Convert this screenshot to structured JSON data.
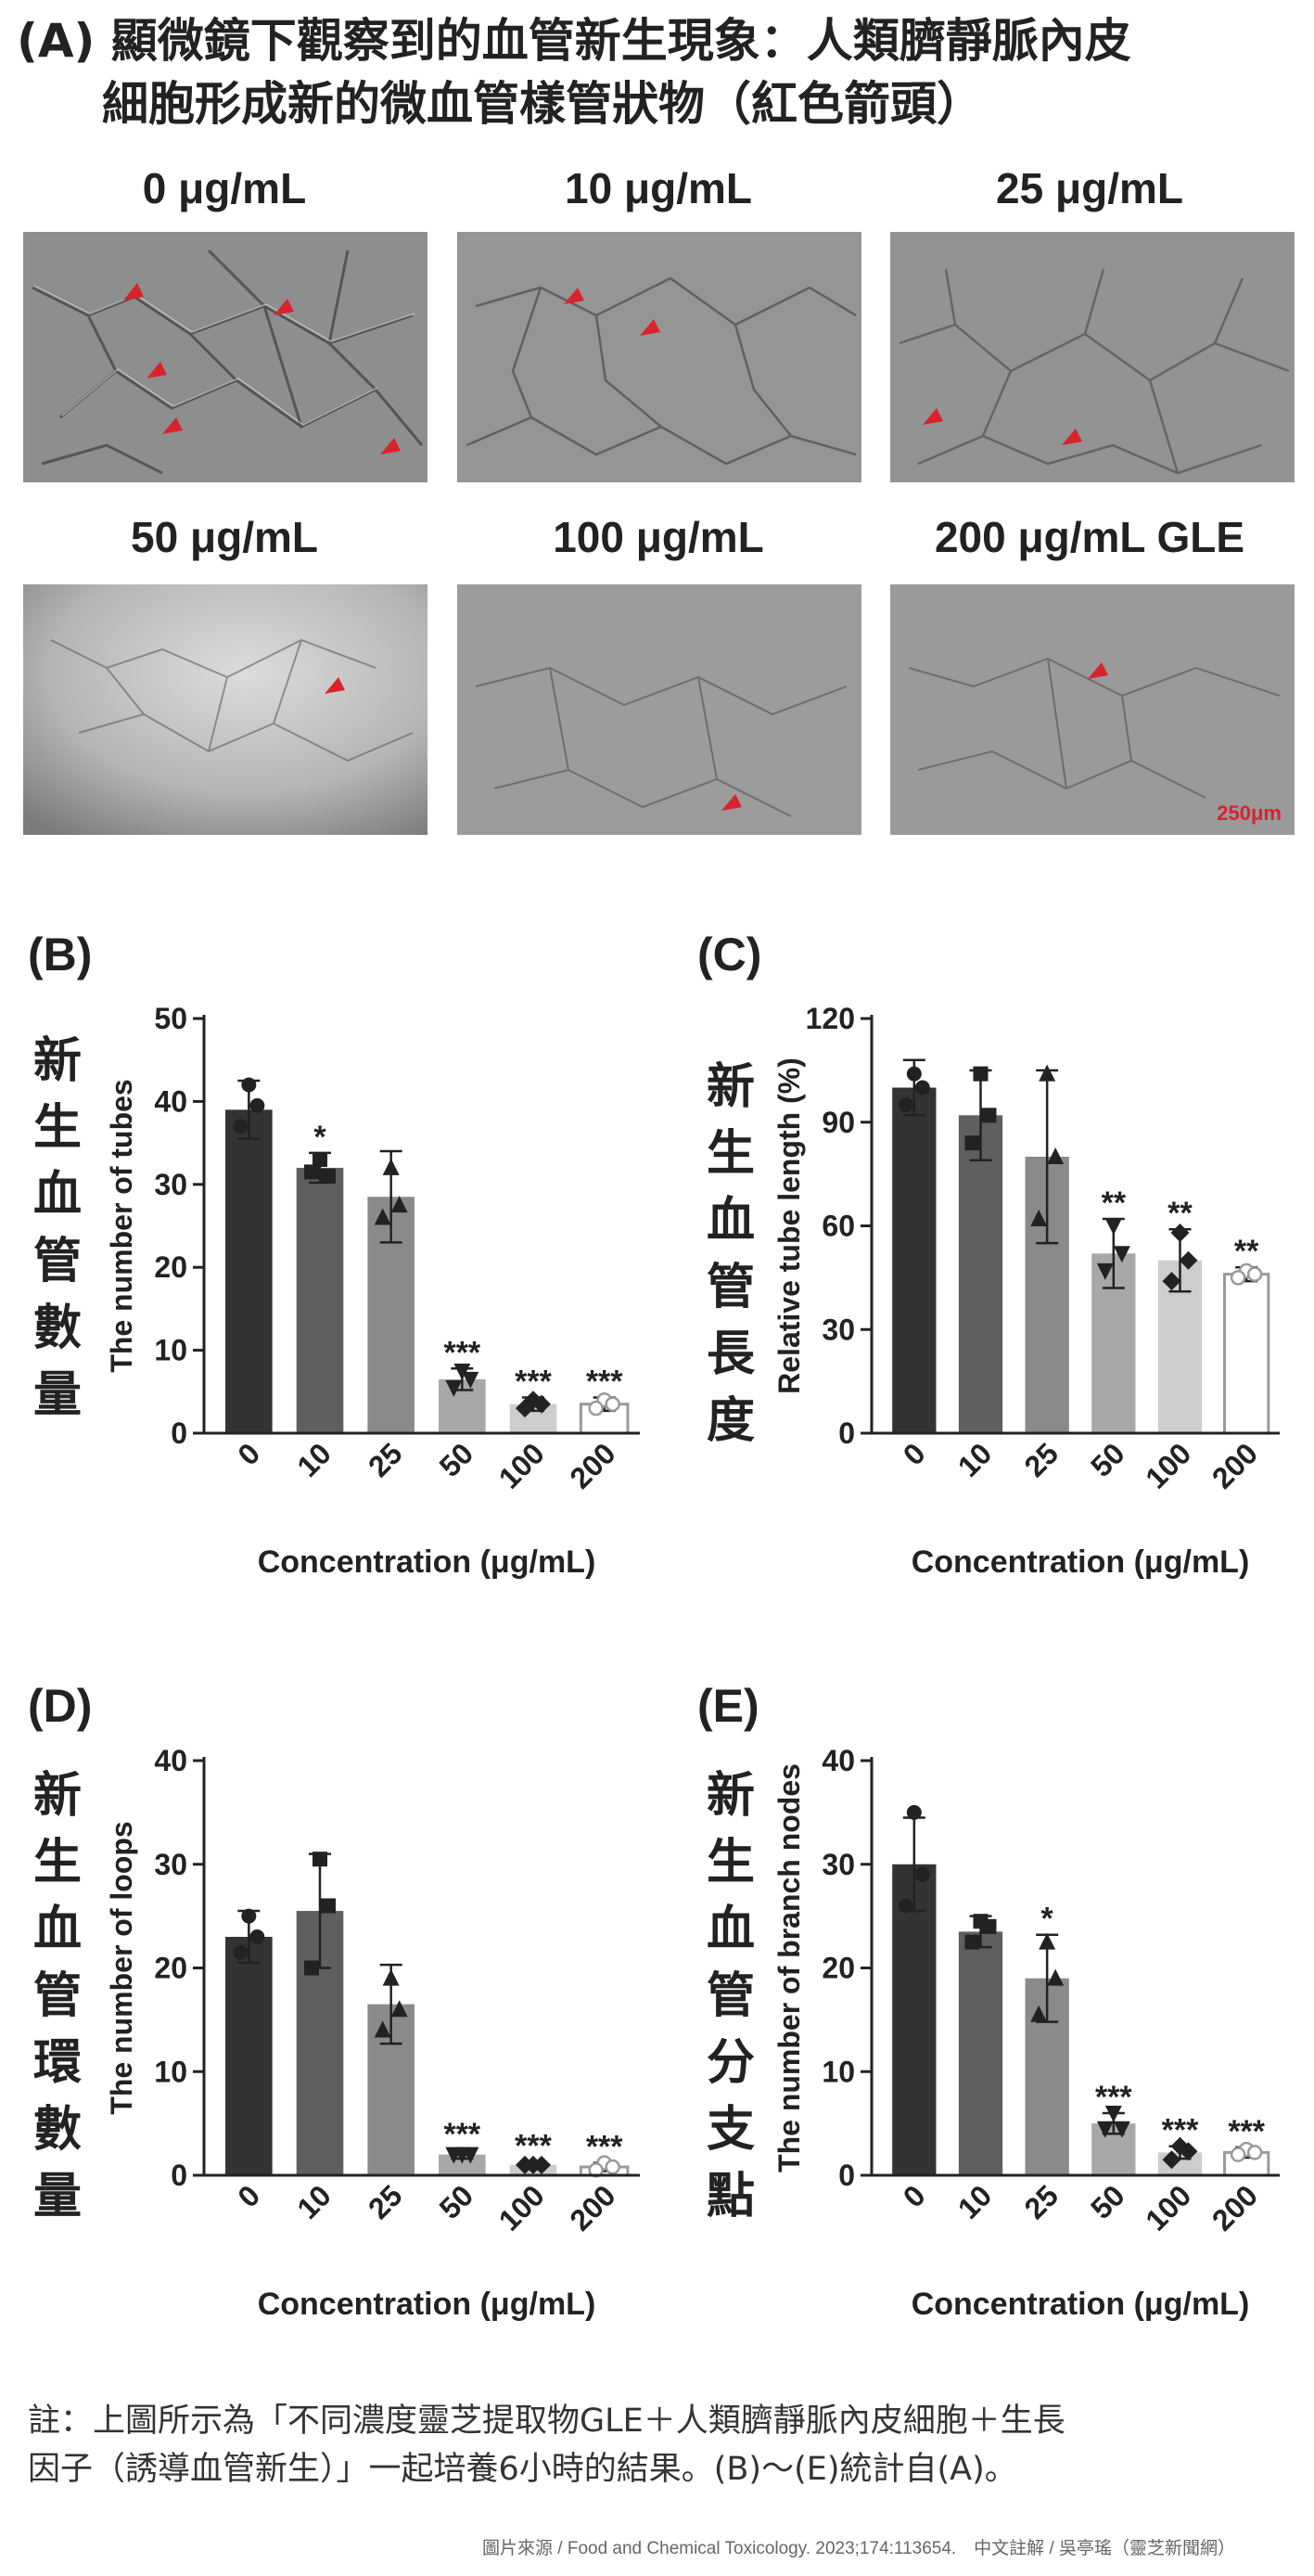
{
  "panel_a": {
    "title_line1": "(A) 顯微鏡下觀察到的血管新生現象：人類臍靜脈內皮",
    "title_line2": "細胞形成新的微血管樣管狀物（紅色箭頭）",
    "labels": [
      "0 μg/mL",
      "10 μg/mL",
      "25 μg/mL",
      "50 μg/mL",
      "100 μg/mL",
      "200 μg/mL GLE"
    ],
    "scale_bar_text": "250μm",
    "arrow_color": "#d9232a"
  },
  "zh_labels": {
    "b": "新生血管數量",
    "c": "新生血管長度",
    "d": "新生血管環數量",
    "e": "新生血管分支點"
  },
  "chart_data": [
    {
      "panel": "(B)",
      "type": "bar",
      "categories": [
        "0",
        "10",
        "25",
        "50",
        "100",
        "200"
      ],
      "values": [
        39,
        32,
        28.5,
        6.5,
        3.5,
        3.5
      ],
      "errors": [
        3.5,
        1.8,
        5.5,
        1.3,
        0.8,
        0.8
      ],
      "points": [
        [
          42,
          37,
          39.5
        ],
        [
          33,
          31.5,
          31
        ],
        [
          32,
          26,
          27.5
        ],
        [
          7.5,
          5.5,
          6.5
        ],
        [
          4,
          3,
          3.5
        ],
        [
          4,
          3,
          3.5
        ]
      ],
      "significance": [
        "",
        "*",
        "",
        "***",
        "***",
        "***"
      ],
      "ylabel": "The number of tubes",
      "xlabel": "Concentration (μg/mL)",
      "ylim": [
        0,
        50
      ],
      "yticks": [
        "0",
        "10",
        "20",
        "30",
        "40",
        "50"
      ]
    },
    {
      "panel": "(C)",
      "type": "bar",
      "categories": [
        "0",
        "10",
        "25",
        "50",
        "100",
        "200"
      ],
      "values": [
        100,
        92,
        80,
        52,
        50,
        46
      ],
      "errors": [
        8,
        13,
        25,
        10,
        9,
        2
      ],
      "points": [
        [
          104,
          95,
          100
        ],
        [
          104,
          84,
          92
        ],
        [
          104,
          62,
          80
        ],
        [
          60,
          47,
          52
        ],
        [
          58,
          44,
          50
        ],
        [
          47,
          45,
          46
        ]
      ],
      "significance": [
        "",
        "",
        "",
        "**",
        "**",
        "**"
      ],
      "ylabel": "Relative tube length (%)",
      "xlabel": "Concentration (μg/mL)",
      "ylim": [
        0,
        120
      ],
      "yticks": [
        "0",
        "30",
        "60",
        "90",
        "120"
      ]
    },
    {
      "panel": "(D)",
      "type": "bar",
      "categories": [
        "0",
        "10",
        "25",
        "50",
        "100",
        "200"
      ],
      "values": [
        23,
        25.5,
        16.5,
        2,
        1,
        0.8
      ],
      "errors": [
        2.5,
        5.5,
        3.8,
        0.4,
        0.3,
        0.4
      ],
      "points": [
        [
          25,
          21.5,
          23
        ],
        [
          30.5,
          20,
          26
        ],
        [
          19,
          14,
          16
        ],
        [
          2,
          2,
          2
        ],
        [
          1,
          1,
          1
        ],
        [
          1.2,
          0.5,
          0.8
        ]
      ],
      "significance": [
        "",
        "",
        "",
        "***",
        "***",
        "***"
      ],
      "ylabel": "The number of loops",
      "xlabel": "Concentration (μg/mL)",
      "ylim": [
        0,
        40
      ],
      "yticks": [
        "0",
        "10",
        "20",
        "30",
        "40"
      ]
    },
    {
      "panel": "(E)",
      "type": "bar",
      "categories": [
        "0",
        "10",
        "25",
        "50",
        "100",
        "200"
      ],
      "values": [
        30,
        23.5,
        19,
        5,
        2.2,
        2.2
      ],
      "errors": [
        4.5,
        1.5,
        4.2,
        1,
        0.6,
        0.5
      ],
      "points": [
        [
          35,
          26,
          29
        ],
        [
          24.5,
          22.5,
          24
        ],
        [
          22.5,
          15.5,
          19
        ],
        [
          6,
          4.5,
          4.5
        ],
        [
          2.8,
          1.5,
          2.3
        ],
        [
          2.5,
          2,
          2.2
        ]
      ],
      "significance": [
        "",
        "",
        "*",
        "***",
        "***",
        "***"
      ],
      "ylabel": "The number of branch nodes",
      "xlabel": "Concentration (μg/mL)",
      "ylim": [
        0,
        40
      ],
      "yticks": [
        "0",
        "10",
        "20",
        "30",
        "40"
      ]
    }
  ],
  "bar_colors": [
    "#333333",
    "#5f5f5f",
    "#8a8a8a",
    "#a8a8a8",
    "#cdcdcd",
    "#ffffff"
  ],
  "marker_shapes": [
    "circle",
    "square",
    "triangle",
    "triangle-down",
    "diamond",
    "circle-open"
  ],
  "note_line1": "註：上圖所示為「不同濃度靈芝提取物GLE＋人類臍靜脈內皮細胞＋生長",
  "note_line2": "因子（誘導血管新生）」一起培養6小時的結果。(B)～(E)統計自(A)。",
  "source": "圖片來源 / Food and Chemical Toxicology. 2023;174:113654.　中文註解 / 吳亭瑤（靈芝新聞網）"
}
